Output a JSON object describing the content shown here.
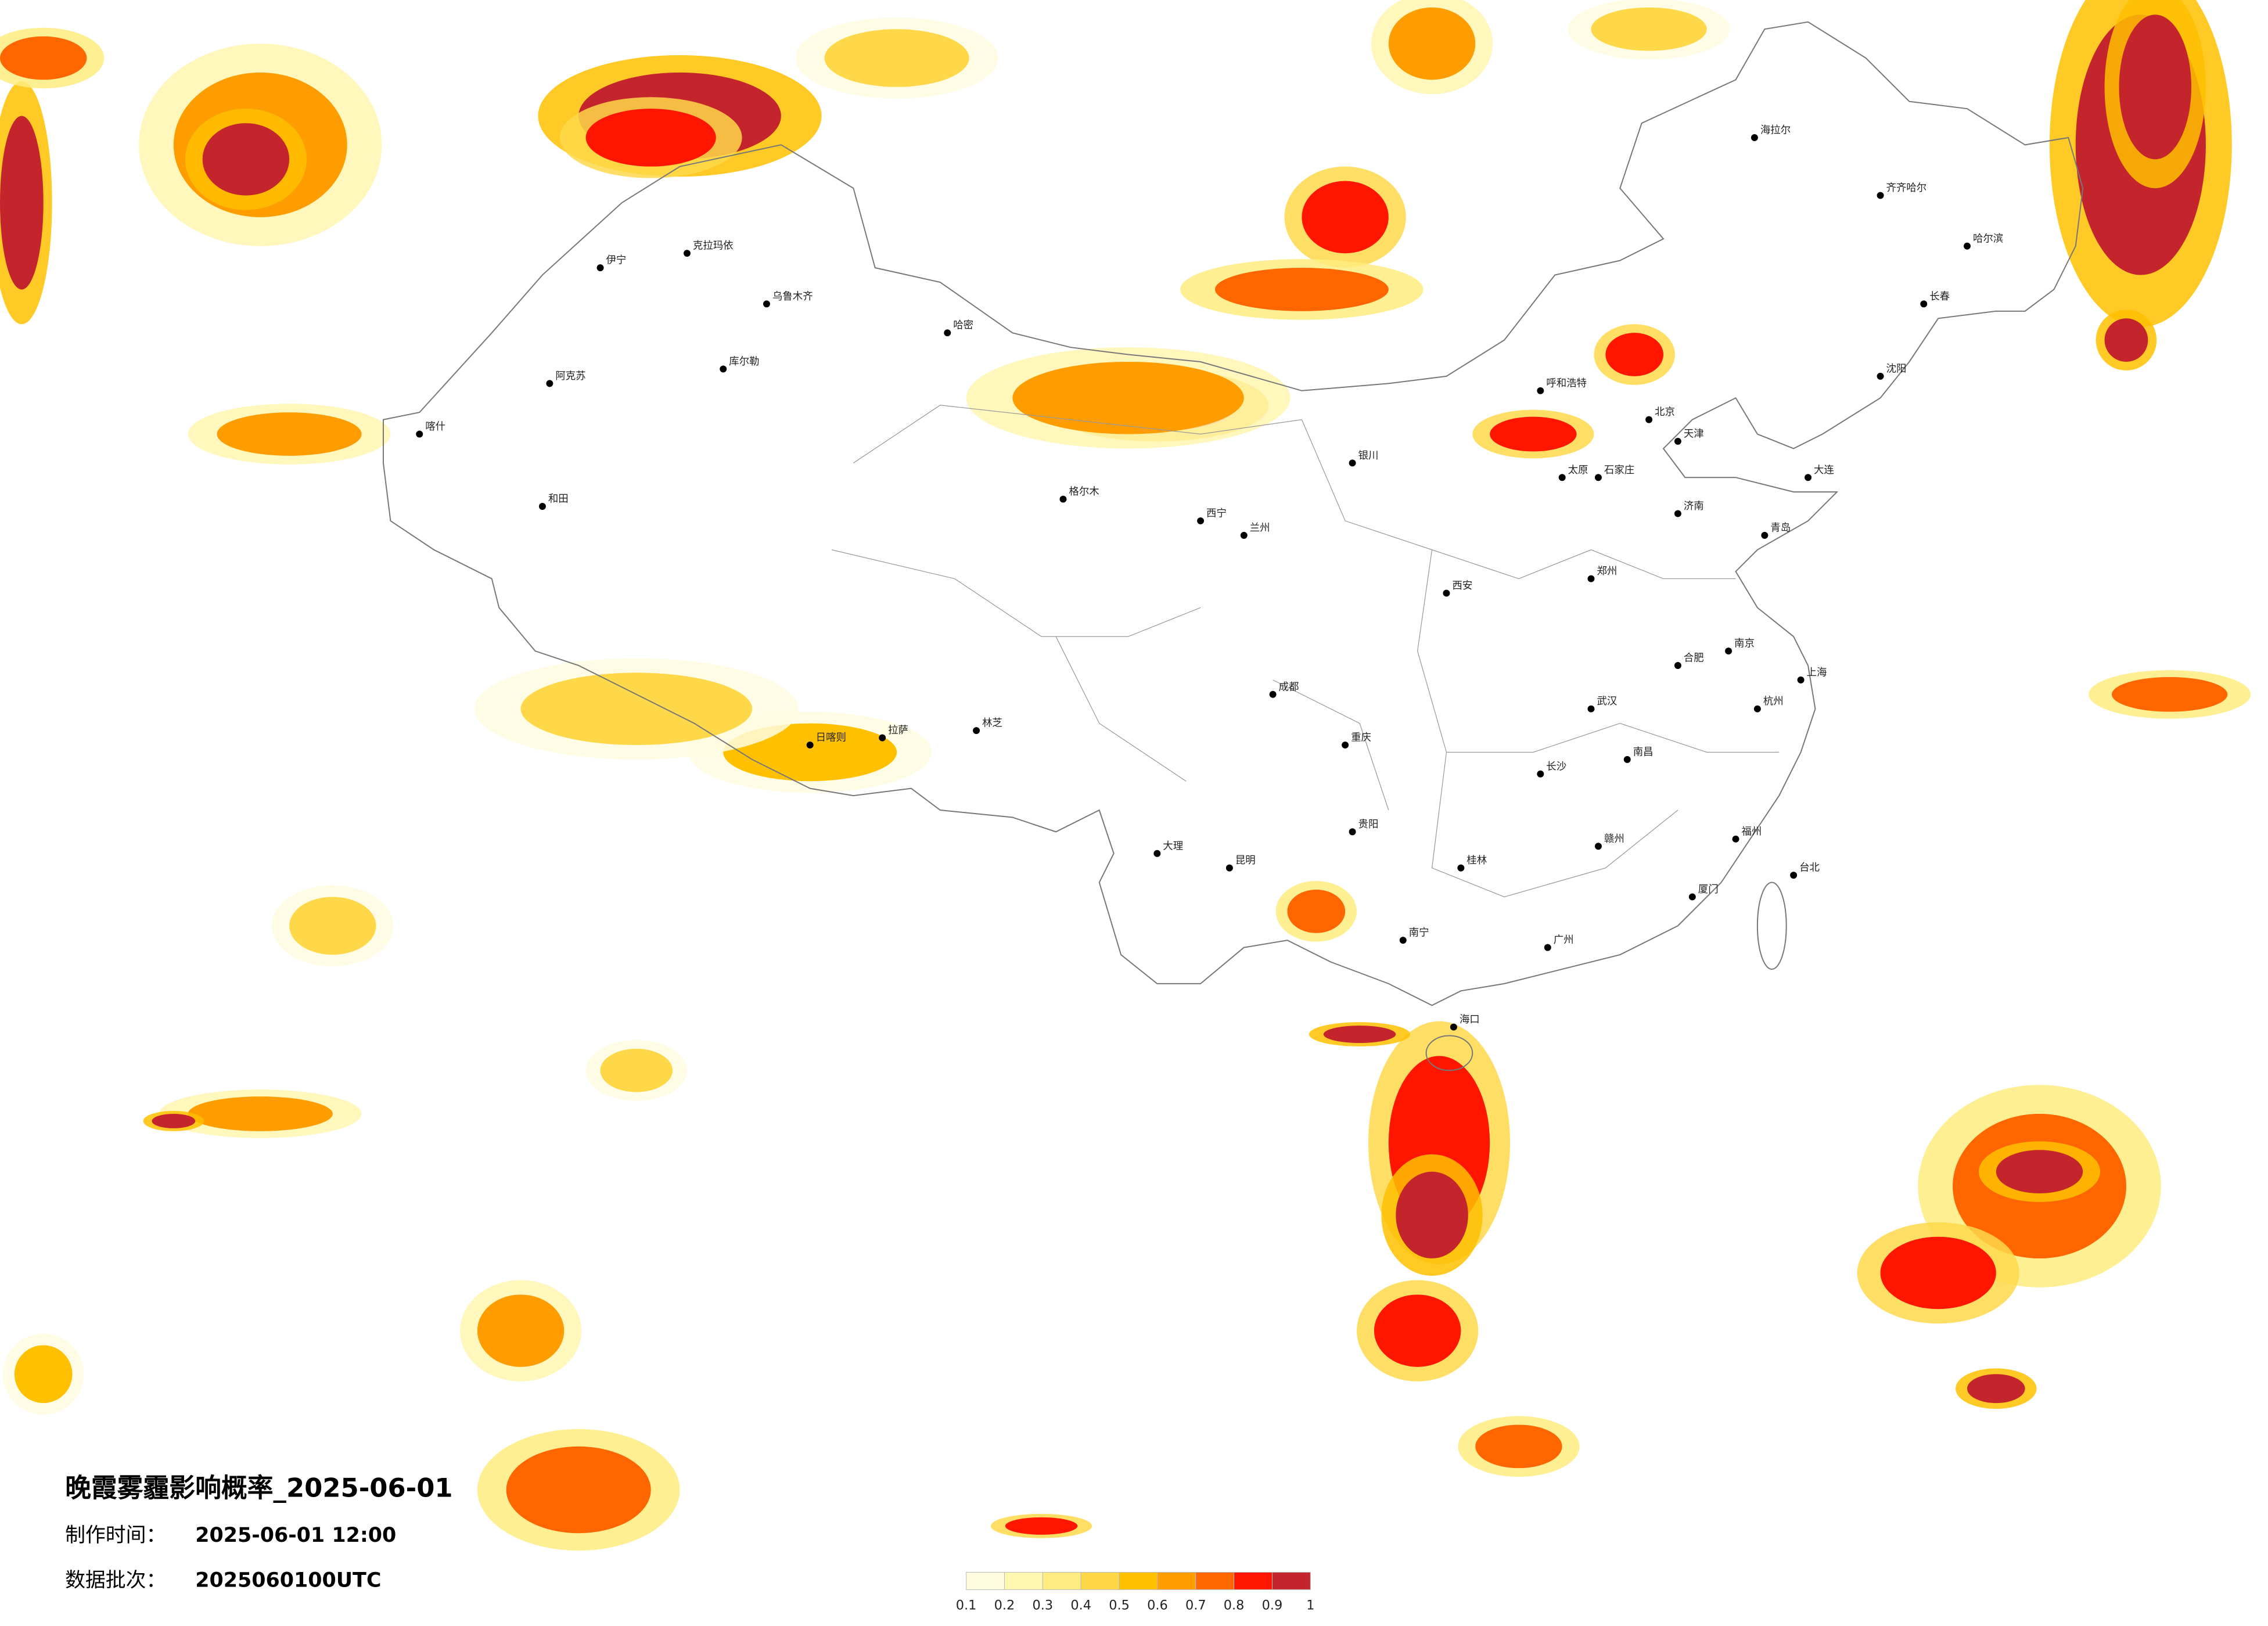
{
  "title": "晚霞雾霾影响概率_2025-06-01",
  "made_time": {
    "label": "制作时间：",
    "value": "2025-06-01 12:00"
  },
  "batch": {
    "label": "数据批次：",
    "value": "2025060100UTC"
  },
  "legend": {
    "ticks": [
      0.1,
      0.2,
      0.3,
      0.4,
      0.5,
      0.6,
      0.7,
      0.8,
      0.9,
      1
    ],
    "colors": [
      "#fffce0",
      "#fff6b0",
      "#ffec80",
      "#ffd84a",
      "#ffc000",
      "#ff9c00",
      "#ff6600",
      "#ff1500",
      "#c4252d"
    ]
  },
  "cities": [
    "海拉尔",
    "齐齐哈尔",
    "哈尔滨",
    "长春",
    "沈阳",
    "北京",
    "天津",
    "呼和浩特",
    "太原",
    "石家庄",
    "济南",
    "郑州",
    "西安",
    "兰州",
    "西宁",
    "银川",
    "乌鲁木齐",
    "克拉玛依",
    "喀什",
    "和田",
    "拉萨",
    "日喀则",
    "成都",
    "重庆",
    "贵阳",
    "昆明",
    "南宁",
    "广州",
    "海口",
    "武汉",
    "长沙",
    "南昌",
    "合肥",
    "南京",
    "杭州",
    "上海",
    "福州",
    "台北",
    "厦门",
    "青岛",
    "大连",
    "哈密",
    "格尔木",
    "伊宁",
    "阿克苏",
    "库尔勒",
    "林芝",
    "大理",
    "桂林",
    "赣州"
  ]
}
